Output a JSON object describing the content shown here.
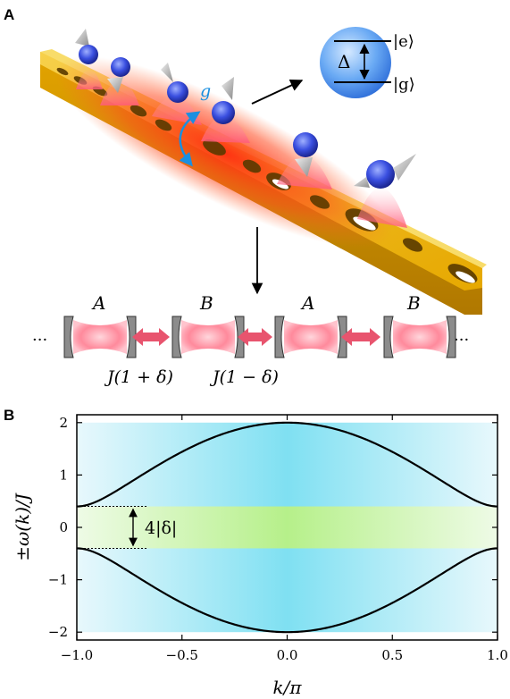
{
  "panel_a": {
    "letter": "A",
    "coupling_label": "g",
    "level_excited": "|e⟩",
    "level_ground": "|g⟩",
    "gap_label": "Δ",
    "cavity_labels": [
      "A",
      "B",
      "A",
      "B"
    ],
    "ellipsis_left": "···",
    "ellipsis_right": "···",
    "coupling_strong": "J(1 + δ)",
    "coupling_weak": "J(1 − δ)",
    "colors": {
      "waveguide": "#f0b400",
      "atom": "#3a4fe0",
      "emission": "#ff6b86",
      "arrow": "#e8546e",
      "coupling_arrow": "#1a8fe0"
    }
  },
  "panel_b": {
    "letter": "B",
    "gap_annotation": "4|δ|",
    "colors": {
      "band_fill": "#7fe0f2",
      "gap_fill": "#b6f08a",
      "curve": "#000000"
    },
    "chart_data": {
      "type": "line",
      "xlabel": "k/π",
      "ylabel": "±ω(k)/J",
      "xlim": [
        -1.0,
        1.0
      ],
      "ylim": [
        -2.15,
        2.15
      ],
      "xticks": [
        "−1.0",
        "−0.5",
        "0.0",
        "0.5",
        "1.0"
      ],
      "xtick_values": [
        -1.0,
        -0.5,
        0.0,
        0.5,
        1.0
      ],
      "yticks": [
        "2",
        "1",
        "0",
        "−1",
        "−2"
      ],
      "ytick_values": [
        2,
        1,
        0,
        -1,
        -2
      ],
      "delta": 0.2,
      "series": [
        {
          "x": [
            -1.0,
            -0.75,
            -0.5,
            -0.25,
            0.0,
            0.25,
            0.5,
            0.75,
            1.0
          ],
          "values": [
            0.4,
            0.74,
            1.43,
            1.86,
            2.0,
            1.86,
            1.43,
            0.74,
            0.4
          ]
        },
        {
          "x": [
            -1.0,
            -0.75,
            -0.5,
            -0.25,
            0.0,
            0.25,
            0.5,
            0.75,
            1.0
          ],
          "values": [
            -0.4,
            -0.74,
            -1.43,
            -1.86,
            -2.0,
            -1.86,
            -1.43,
            -0.74,
            -0.4
          ]
        }
      ],
      "band_range": [
        -2.0,
        2.0
      ],
      "gap_range": [
        -0.4,
        0.4
      ]
    }
  }
}
